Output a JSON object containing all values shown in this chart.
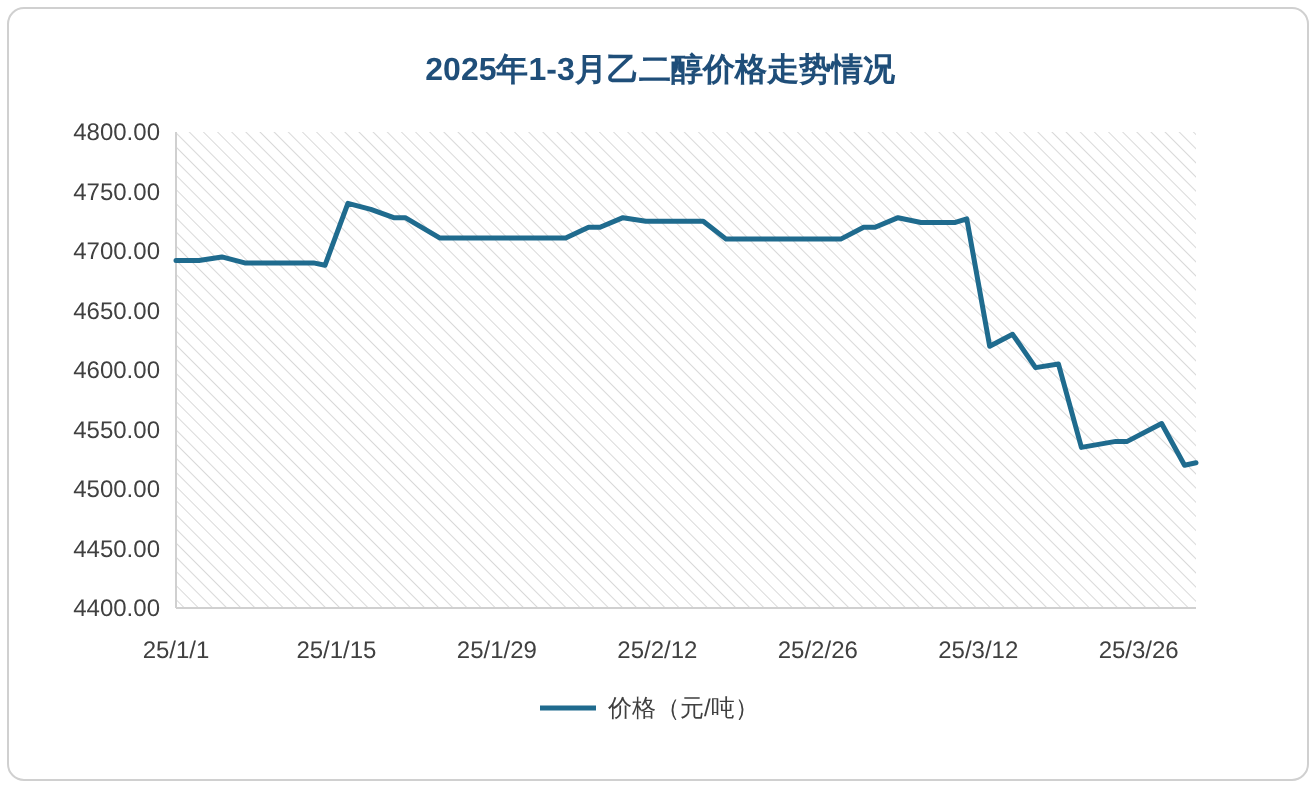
{
  "chart_data": {
    "type": "line",
    "title": "2025年1-3月乙二醇价格走势情况",
    "x": [
      "2025-01-01",
      "2025-01-03",
      "2025-01-05",
      "2025-01-07",
      "2025-01-13",
      "2025-01-14",
      "2025-01-16",
      "2025-01-18",
      "2025-01-20",
      "2025-01-21",
      "2025-01-24",
      "2025-02-04",
      "2025-02-06",
      "2025-02-07",
      "2025-02-09",
      "2025-02-11",
      "2025-02-16",
      "2025-02-18",
      "2025-02-28",
      "2025-03-02",
      "2025-03-03",
      "2025-03-05",
      "2025-03-07",
      "2025-03-10",
      "2025-03-11",
      "2025-03-13",
      "2025-03-15",
      "2025-03-17",
      "2025-03-19",
      "2025-03-21",
      "2025-03-24",
      "2025-03-25",
      "2025-03-28",
      "2025-03-30",
      "2025-03-31"
    ],
    "series": [
      {
        "name": "价格（元/吨）",
        "color": "#1f6b8e",
        "values": [
          4692,
          4692,
          4695,
          4690,
          4690,
          4688,
          4740,
          4735,
          4728,
          4728,
          4711,
          4711,
          4720,
          4720,
          4728,
          4725,
          4725,
          4710,
          4710,
          4720,
          4720,
          4728,
          4724,
          4724,
          4727,
          4620,
          4630,
          4602,
          4605,
          4535,
          4540,
          4540,
          4555,
          4520,
          4522
        ]
      }
    ],
    "xlim": [
      "2025-01-01",
      "2025-03-31"
    ],
    "xticks": [
      {
        "value": "2025-01-01",
        "label": "25/1/1"
      },
      {
        "value": "2025-01-15",
        "label": "25/1/15"
      },
      {
        "value": "2025-01-29",
        "label": "25/1/29"
      },
      {
        "value": "2025-02-12",
        "label": "25/2/12"
      },
      {
        "value": "2025-02-26",
        "label": "25/2/26"
      },
      {
        "value": "2025-03-12",
        "label": "25/3/12"
      },
      {
        "value": "2025-03-26",
        "label": "25/3/26"
      }
    ],
    "ylim": [
      4400,
      4800
    ],
    "yticks": [
      {
        "value": 4400,
        "label": "4400.00"
      },
      {
        "value": 4450,
        "label": "4450.00"
      },
      {
        "value": 4500,
        "label": "4500.00"
      },
      {
        "value": 4550,
        "label": "4550.00"
      },
      {
        "value": 4600,
        "label": "4600.00"
      },
      {
        "value": 4650,
        "label": "4650.00"
      },
      {
        "value": 4700,
        "label": "4700.00"
      },
      {
        "value": 4750,
        "label": "4750.00"
      },
      {
        "value": 4800,
        "label": "4800.00"
      }
    ],
    "grid": false,
    "legend": "bottom",
    "marker": "none",
    "line_style": "solid"
  }
}
